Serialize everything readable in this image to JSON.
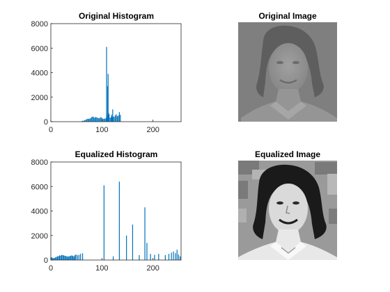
{
  "chart_data": [
    {
      "type": "bar",
      "title": "Original Histogram",
      "xlabel": "",
      "ylabel": "",
      "xlim": [
        0,
        255
      ],
      "ylim": [
        0,
        8000
      ],
      "xticks": [
        "0",
        "100",
        "200"
      ],
      "yticks": [
        "0",
        "2000",
        "4000",
        "6000",
        "8000"
      ],
      "grid": false,
      "bar_color": "#0072BD",
      "x": [
        60,
        62,
        64,
        66,
        68,
        70,
        72,
        74,
        76,
        78,
        80,
        82,
        84,
        86,
        88,
        90,
        92,
        94,
        96,
        98,
        100,
        102,
        104,
        106,
        108,
        109,
        110,
        111,
        112,
        113,
        114,
        116,
        118,
        119,
        120,
        121,
        122,
        124,
        126,
        128,
        130,
        132,
        134,
        136
      ],
      "values": [
        40,
        70,
        80,
        110,
        150,
        200,
        240,
        230,
        250,
        300,
        380,
        420,
        360,
        330,
        380,
        340,
        300,
        280,
        320,
        380,
        300,
        250,
        220,
        260,
        280,
        6100,
        500,
        2900,
        3900,
        700,
        600,
        320,
        380,
        560,
        360,
        1000,
        420,
        380,
        520,
        600,
        440,
        500,
        780,
        560
      ]
    },
    {
      "type": "image",
      "title": "Original Image"
    },
    {
      "type": "bar",
      "title": "Equalized Histogram",
      "xlabel": "",
      "ylabel": "",
      "xlim": [
        0,
        255
      ],
      "ylim": [
        0,
        8000
      ],
      "xticks": [
        "0",
        "100",
        "200"
      ],
      "yticks": [
        "0",
        "2000",
        "4000",
        "6000",
        "8000"
      ],
      "grid": false,
      "bar_color": "#0072BD",
      "x": [
        1,
        3,
        5,
        7,
        9,
        11,
        13,
        15,
        17,
        19,
        21,
        23,
        25,
        27,
        29,
        31,
        33,
        35,
        37,
        39,
        41,
        43,
        45,
        47,
        49,
        52,
        55,
        58,
        62,
        104,
        122,
        134,
        148,
        160,
        173,
        184,
        188,
        195,
        203,
        211,
        224,
        231,
        236,
        240,
        244,
        247,
        250,
        253
      ],
      "values": [
        230,
        180,
        150,
        170,
        220,
        260,
        300,
        320,
        380,
        350,
        420,
        400,
        380,
        350,
        330,
        300,
        280,
        300,
        320,
        350,
        380,
        330,
        300,
        400,
        450,
        400,
        420,
        500,
        550,
        6100,
        300,
        6400,
        2000,
        2900,
        400,
        4300,
        1400,
        500,
        420,
        500,
        400,
        500,
        600,
        700,
        560,
        840,
        450,
        300
      ]
    },
    {
      "type": "image",
      "title": "Equalized Image"
    }
  ]
}
